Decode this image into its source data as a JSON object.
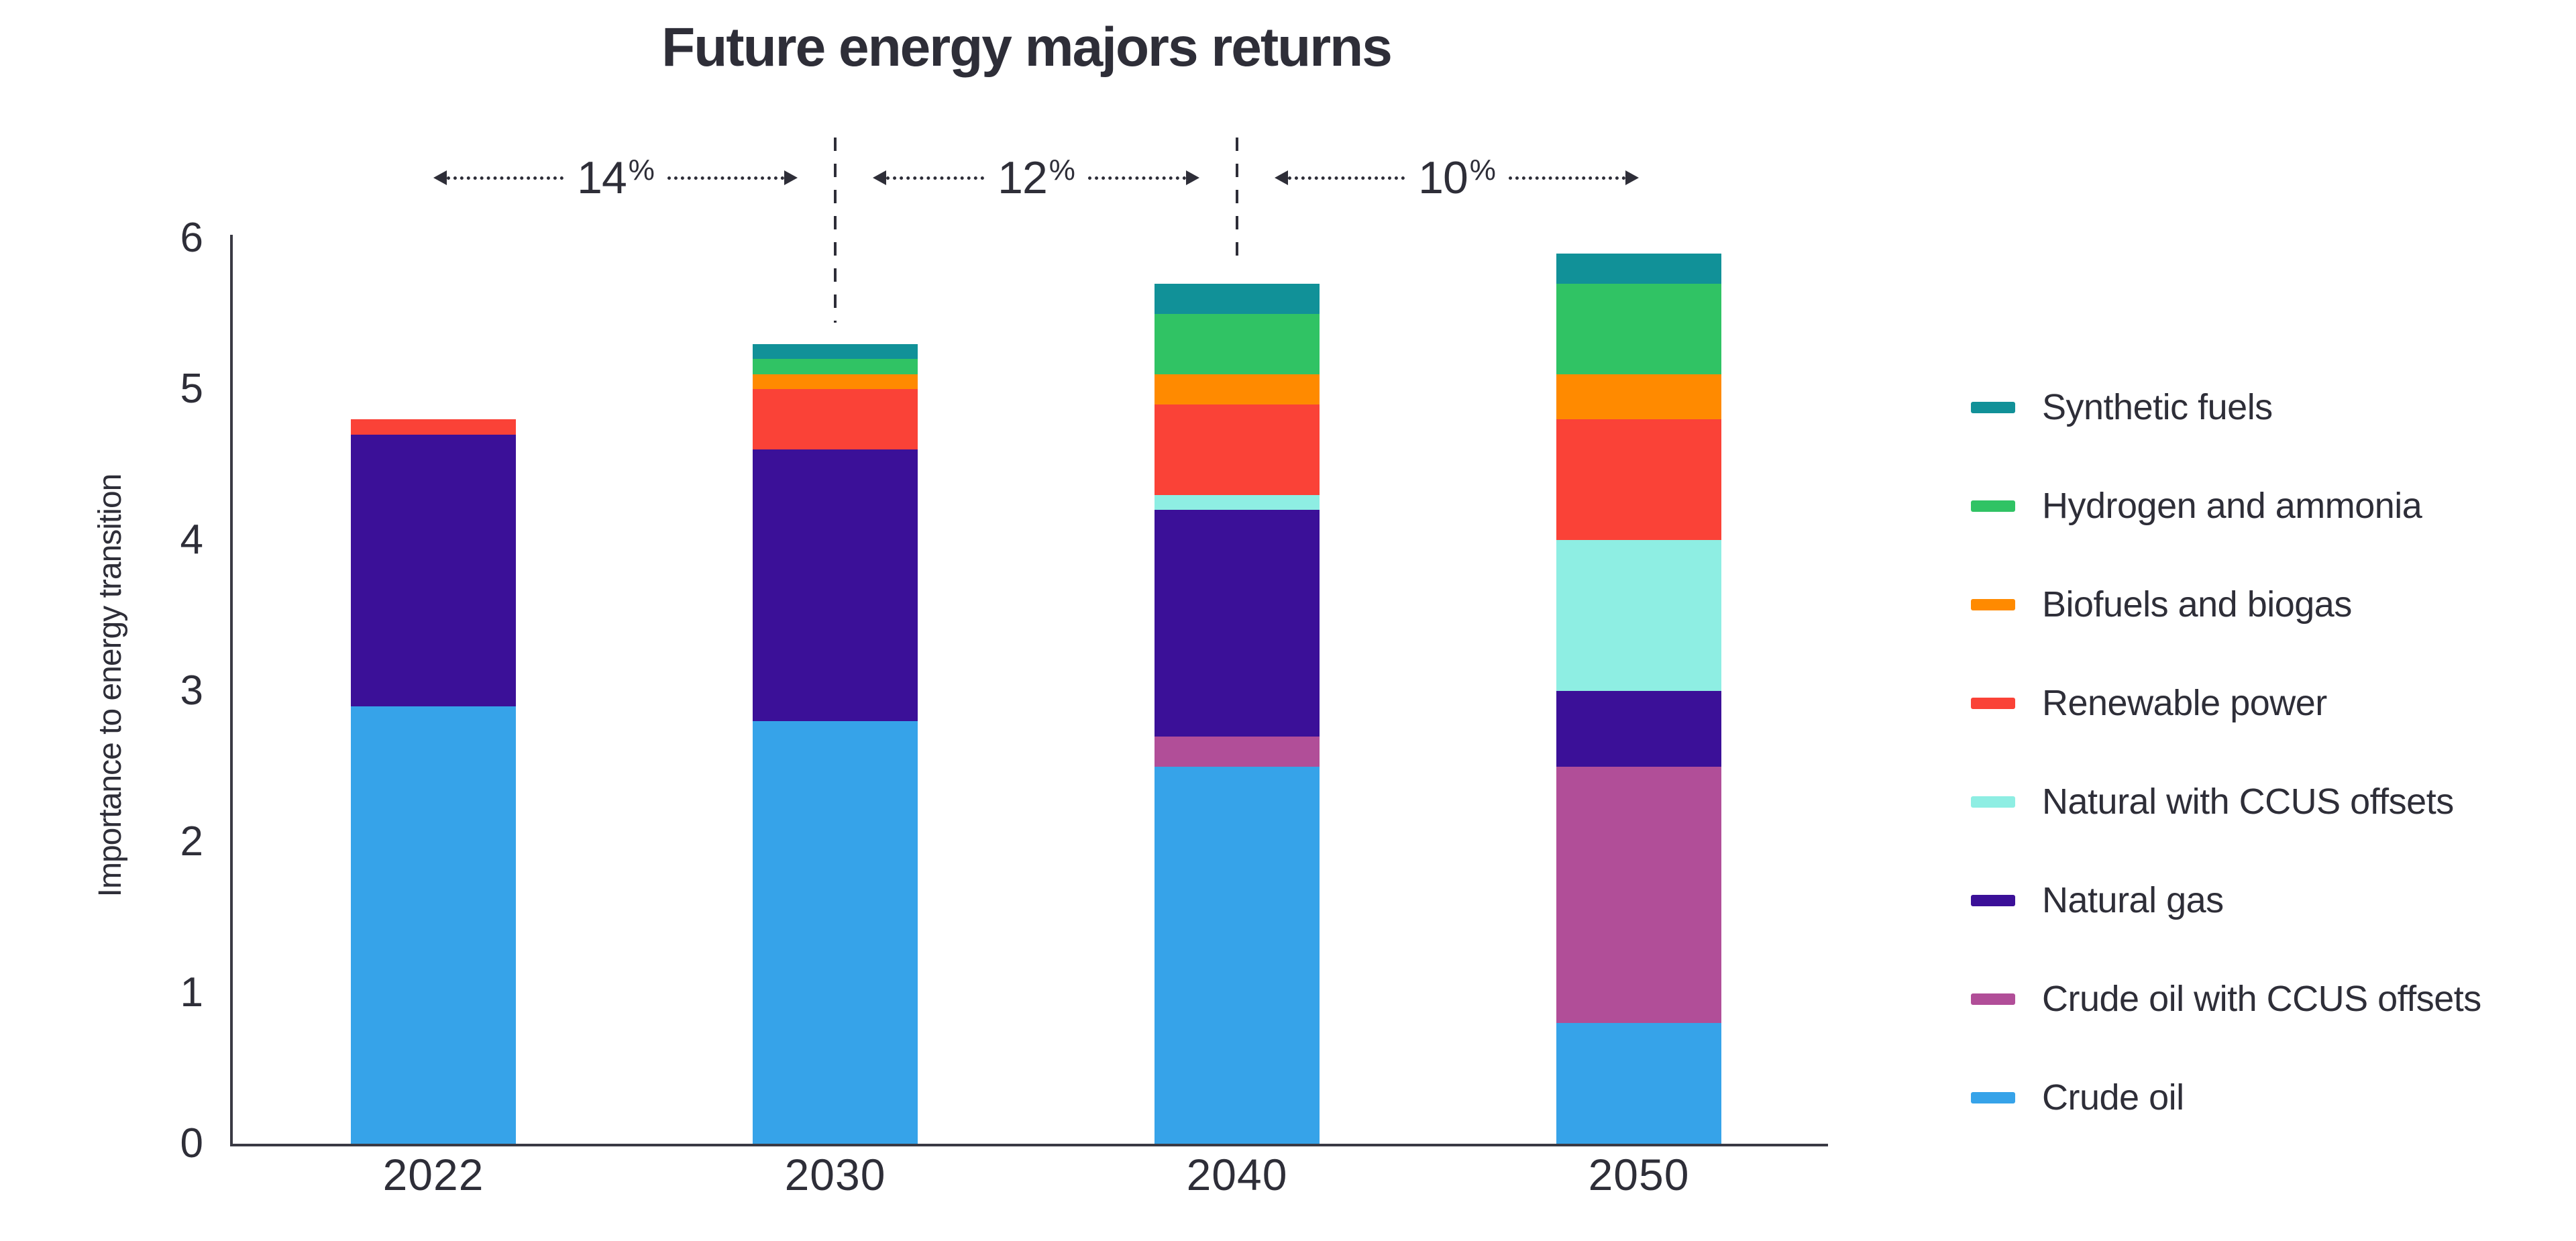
{
  "chart_data": {
    "type": "bar",
    "stacked": true,
    "title": "Future energy majors returns",
    "xlabel": "",
    "ylabel": "Importance to energy transition",
    "categories": [
      "2022",
      "2030",
      "2040",
      "2050"
    ],
    "series": [
      {
        "name": "Crude oil",
        "color": "#36A3E9",
        "values": [
          2.9,
          2.8,
          2.5,
          0.8
        ]
      },
      {
        "name": "Crude oil with CCUS offsets",
        "color": "#B14E98",
        "values": [
          0,
          0,
          0.2,
          1.7
        ]
      },
      {
        "name": "Natural gas",
        "color": "#3B1098",
        "values": [
          1.8,
          1.8,
          1.5,
          0.5
        ]
      },
      {
        "name": "Natural with CCUS offsets",
        "color": "#8EEEE3",
        "values": [
          0,
          0,
          0.1,
          1.0
        ]
      },
      {
        "name": "Renewable power",
        "color": "#FA4237",
        "values": [
          0.1,
          0.4,
          0.6,
          0.8
        ]
      },
      {
        "name": "Biofuels and biogas",
        "color": "#FF8A00",
        "values": [
          0,
          0.1,
          0.2,
          0.3
        ]
      },
      {
        "name": "Hydrogen and ammonia",
        "color": "#30C364",
        "values": [
          0,
          0.1,
          0.4,
          0.6
        ]
      },
      {
        "name": "Synthetic fuels",
        "color": "#119198",
        "values": [
          0,
          0.1,
          0.2,
          0.2
        ]
      }
    ],
    "totals": [
      4.8,
      5.3,
      5.7,
      5.9
    ],
    "ylim": [
      0,
      6
    ],
    "yticks": [
      0,
      1,
      2,
      3,
      4,
      5,
      6
    ],
    "grid": false,
    "legend_position": "right",
    "legend_order_top_to_bottom": [
      "Synthetic fuels",
      "Hydrogen and ammonia",
      "Biofuels and biogas",
      "Renewable power",
      "Natural with CCUS offsets",
      "Natural gas",
      "Crude oil with CCUS offsets",
      "Crude oil"
    ],
    "annotations": {
      "period_returns": [
        {
          "label": "14",
          "suffix": "%"
        },
        {
          "label": "12",
          "suffix": "%"
        },
        {
          "label": "10",
          "suffix": "%"
        }
      ]
    }
  },
  "colors": {
    "ink": "#2E2E38",
    "axis": "#3A3A44",
    "background": "#FFFFFF"
  }
}
